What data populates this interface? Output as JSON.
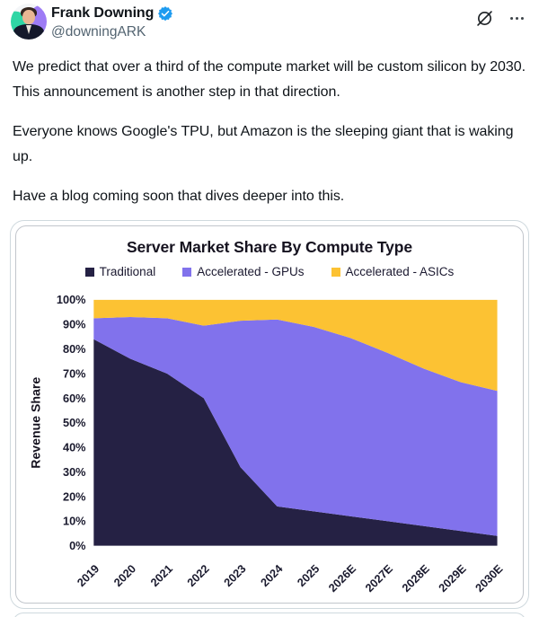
{
  "tweet": {
    "author": {
      "name": "Frank Downing",
      "handle": "@downingARK",
      "verified": true,
      "verified_color": "#1d9bf0"
    },
    "body_paragraphs": [
      "We predict that over a third of the compute market will be custom silicon by 2030. This announcement is another step in that direction.",
      "Everyone knows Google's TPU, but Amazon is the sleeping giant that is waking up.",
      "Have a blog coming soon that dives deeper into this."
    ],
    "action_icons": [
      "grok-icon",
      "more-icon"
    ]
  },
  "colors": {
    "text_primary": "#0f1419",
    "text_secondary": "#536471",
    "card_border": "#cfd9de",
    "chart_border": "#c2c6cc"
  },
  "chart_data": {
    "type": "area",
    "stacked": true,
    "stack_mode": "percent",
    "title": "Server Market Share By Compute Type",
    "xlabel": "",
    "ylabel": "Revenue Share",
    "ylim": [
      0,
      100
    ],
    "grid": false,
    "legend_position": "top",
    "y_ticks": [
      "0%",
      "10%",
      "20%",
      "30%",
      "40%",
      "50%",
      "60%",
      "70%",
      "80%",
      "90%",
      "100%"
    ],
    "categories": [
      "2019",
      "2020",
      "2021",
      "2022",
      "2023",
      "2024",
      "2025",
      "2026E",
      "2027E",
      "2028E",
      "2029E",
      "2030E"
    ],
    "series": [
      {
        "name": "Traditional",
        "color": "#252144",
        "values": [
          84,
          76,
          70,
          60,
          32,
          16,
          14,
          12,
          10,
          8,
          6,
          4
        ]
      },
      {
        "name": "Accelerated - GPUs",
        "color": "#8172ec",
        "values": [
          8.5,
          17,
          22.5,
          29.5,
          59.5,
          76,
          75,
          72.5,
          68.5,
          64,
          60.5,
          59
        ]
      },
      {
        "name": "Accelerated - ASICs",
        "color": "#fcc233",
        "values": [
          7.5,
          7,
          7.5,
          10.5,
          8.5,
          8,
          11,
          15.5,
          21.5,
          28,
          33.5,
          37
        ]
      }
    ]
  }
}
